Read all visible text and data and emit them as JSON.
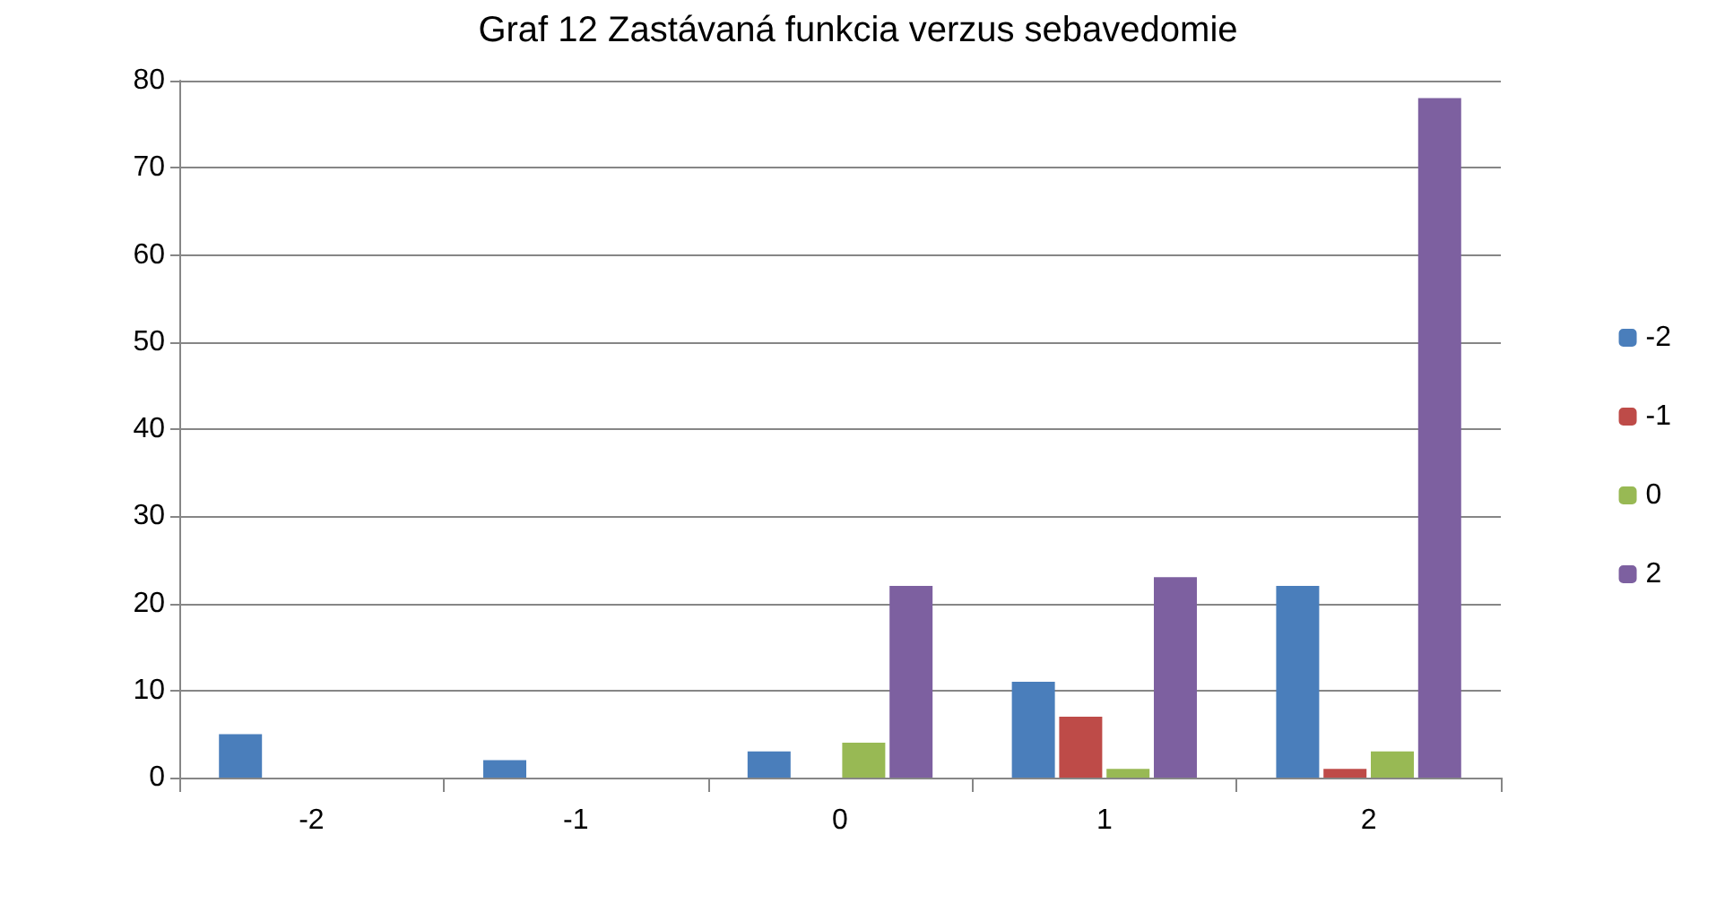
{
  "chart_data": {
    "type": "bar",
    "title": "Graf 12 Zastávaná funkcia verzus sebavedomie",
    "categories": [
      "-2",
      "-1",
      "0",
      "1",
      "2"
    ],
    "series": [
      {
        "name": "-2",
        "color": "#4a7ebb",
        "values": [
          5,
          2,
          3,
          11,
          22
        ]
      },
      {
        "name": "-1",
        "color": "#be4b48",
        "values": [
          0,
          0,
          0,
          7,
          1
        ]
      },
      {
        "name": "0",
        "color": "#98b954",
        "values": [
          0,
          0,
          4,
          1,
          3
        ]
      },
      {
        "name": "2",
        "color": "#7d60a0",
        "values": [
          0,
          0,
          22,
          23,
          78
        ]
      }
    ],
    "ylim": [
      0,
      80
    ],
    "yticks": [
      0,
      10,
      20,
      30,
      40,
      50,
      60,
      70,
      80
    ],
    "grid": "y",
    "legend": "right"
  }
}
